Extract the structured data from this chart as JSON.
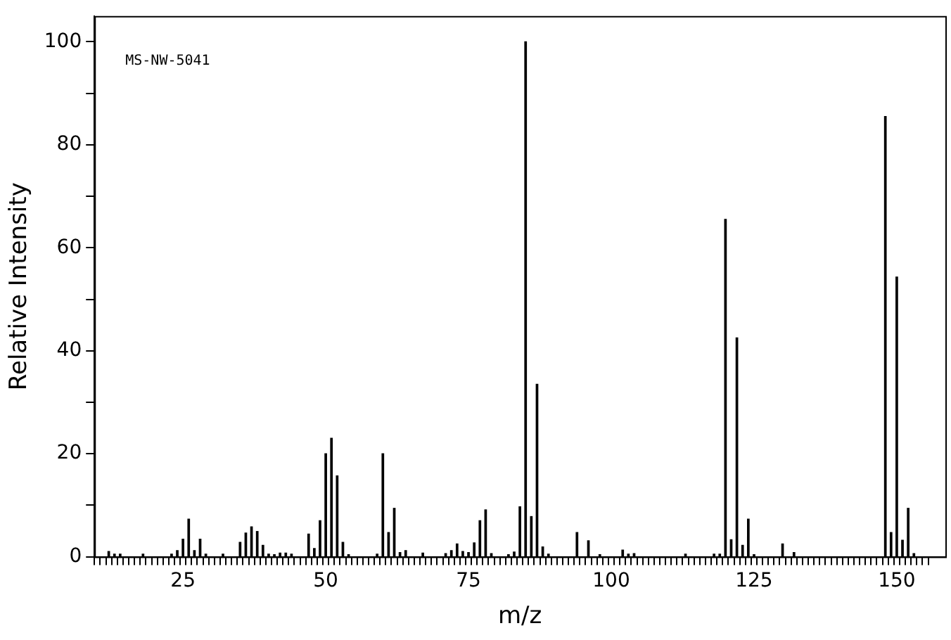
{
  "chart_data": {
    "type": "bar",
    "xlabel": "m/z",
    "ylabel": "Relative Intensity",
    "annotations": [
      "MS-NW-5041"
    ],
    "x": [
      12,
      13,
      14,
      18,
      23,
      24,
      25,
      26,
      27,
      28,
      29,
      32,
      35,
      36,
      37,
      38,
      39,
      40,
      41,
      42,
      43,
      44,
      47,
      48,
      49,
      50,
      51,
      52,
      53,
      54,
      59,
      60,
      61,
      62,
      63,
      64,
      67,
      71,
      72,
      73,
      74,
      75,
      76,
      77,
      78,
      79,
      82,
      83,
      84,
      85,
      86,
      87,
      88,
      89,
      94,
      96,
      98,
      102,
      103,
      104,
      113,
      118,
      119,
      120,
      121,
      122,
      123,
      124,
      125,
      130,
      132,
      148,
      149,
      150,
      151,
      152,
      153
    ],
    "values": [
      1,
      0.5,
      0.5,
      0.5,
      0.5,
      1.2,
      3.4,
      7.3,
      1.2,
      3.4,
      0.5,
      0.5,
      2.8,
      4.6,
      5.8,
      4.9,
      2.2,
      0.5,
      0.4,
      0.7,
      0.7,
      0.5,
      4.4,
      1.6,
      7,
      20,
      23,
      15.7,
      2.8,
      0.4,
      0.5,
      20,
      4.7,
      9.4,
      0.8,
      1.2,
      0.7,
      0.6,
      1.2,
      2.5,
      1,
      0.8,
      2.7,
      7,
      9.1,
      0.6,
      0.4,
      0.9,
      9.7,
      100,
      7.8,
      33.5,
      1.9,
      0.5,
      4.7,
      3.1,
      0.4,
      1.3,
      0.5,
      0.6,
      0.5,
      0.5,
      0.5,
      65.5,
      3.3,
      42.5,
      2.2,
      7.3,
      0.4,
      2.5,
      0.8,
      85.5,
      4.7,
      54.3,
      3.2,
      9.4,
      0.6
    ],
    "color": "#000000",
    "xlim": [
      10,
      158
    ],
    "xticks": [
      {
        "value": 10,
        "label": null
      },
      {
        "value": 11,
        "label": null
      },
      {
        "value": 12,
        "label": null
      },
      {
        "value": 13,
        "label": null
      },
      {
        "value": 14,
        "label": null
      },
      {
        "value": 15,
        "label": null
      },
      {
        "value": 16,
        "label": null
      },
      {
        "value": 17,
        "label": null
      },
      {
        "value": 18,
        "label": null
      },
      {
        "value": 19,
        "label": null
      },
      {
        "value": 20,
        "label": null
      },
      {
        "value": 21,
        "label": null
      },
      {
        "value": 22,
        "label": null
      },
      {
        "value": 23,
        "label": null
      },
      {
        "value": 24,
        "label": null
      },
      25,
      {
        "value": 26,
        "label": null
      },
      {
        "value": 27,
        "label": null
      },
      {
        "value": 28,
        "label": null
      },
      {
        "value": 29,
        "label": null
      },
      {
        "value": 30,
        "label": null
      },
      {
        "value": 31,
        "label": null
      },
      {
        "value": 32,
        "label": null
      },
      {
        "value": 33,
        "label": null
      },
      {
        "value": 34,
        "label": null
      },
      {
        "value": 35,
        "label": null
      },
      {
        "value": 36,
        "label": null
      },
      {
        "value": 37,
        "label": null
      },
      {
        "value": 38,
        "label": null
      },
      {
        "value": 39,
        "label": null
      },
      {
        "value": 40,
        "label": null
      },
      {
        "value": 41,
        "label": null
      },
      {
        "value": 42,
        "label": null
      },
      {
        "value": 43,
        "label": null
      },
      {
        "value": 44,
        "label": null
      },
      {
        "value": 45,
        "label": null
      },
      {
        "value": 46,
        "label": null
      },
      {
        "value": 47,
        "label": null
      },
      {
        "value": 48,
        "label": null
      },
      {
        "value": 49,
        "label": null
      },
      50,
      {
        "value": 51,
        "label": null
      },
      {
        "value": 52,
        "label": null
      },
      {
        "value": 53,
        "label": null
      },
      {
        "value": 54,
        "label": null
      },
      {
        "value": 55,
        "label": null
      },
      {
        "value": 56,
        "label": null
      },
      {
        "value": 57,
        "label": null
      },
      {
        "value": 58,
        "label": null
      },
      {
        "value": 59,
        "label": null
      },
      {
        "value": 60,
        "label": null
      },
      {
        "value": 61,
        "label": null
      },
      {
        "value": 62,
        "label": null
      },
      {
        "value": 63,
        "label": null
      },
      {
        "value": 64,
        "label": null
      },
      {
        "value": 65,
        "label": null
      },
      {
        "value": 66,
        "label": null
      },
      {
        "value": 67,
        "label": null
      },
      {
        "value": 68,
        "label": null
      },
      {
        "value": 69,
        "label": null
      },
      {
        "value": 70,
        "label": null
      },
      {
        "value": 71,
        "label": null
      },
      {
        "value": 72,
        "label": null
      },
      {
        "value": 73,
        "label": null
      },
      {
        "value": 74,
        "label": null
      },
      75,
      {
        "value": 76,
        "label": null
      },
      {
        "value": 77,
        "label": null
      },
      {
        "value": 78,
        "label": null
      },
      {
        "value": 79,
        "label": null
      },
      {
        "value": 80,
        "label": null
      },
      {
        "value": 81,
        "label": null
      },
      {
        "value": 82,
        "label": null
      },
      {
        "value": 83,
        "label": null
      },
      {
        "value": 84,
        "label": null
      },
      {
        "value": 85,
        "label": null
      },
      {
        "value": 86,
        "label": null
      },
      {
        "value": 87,
        "label": null
      },
      {
        "value": 88,
        "label": null
      },
      {
        "value": 89,
        "label": null
      },
      {
        "value": 90,
        "label": null
      },
      {
        "value": 91,
        "label": null
      },
      {
        "value": 92,
        "label": null
      },
      {
        "value": 93,
        "label": null
      },
      {
        "value": 94,
        "label": null
      },
      {
        "value": 95,
        "label": null
      },
      {
        "value": 96,
        "label": null
      },
      {
        "value": 97,
        "label": null
      },
      {
        "value": 98,
        "label": null
      },
      {
        "value": 99,
        "label": null
      },
      100,
      {
        "value": 101,
        "label": null
      },
      {
        "value": 102,
        "label": null
      },
      {
        "value": 103,
        "label": null
      },
      {
        "value": 104,
        "label": null
      },
      {
        "value": 105,
        "label": null
      },
      {
        "value": 106,
        "label": null
      },
      {
        "value": 107,
        "label": null
      },
      {
        "value": 108,
        "label": null
      },
      {
        "value": 109,
        "label": null
      },
      {
        "value": 110,
        "label": null
      },
      {
        "value": 111,
        "label": null
      },
      {
        "value": 112,
        "label": null
      },
      {
        "value": 113,
        "label": null
      },
      {
        "value": 114,
        "label": null
      },
      {
        "value": 115,
        "label": null
      },
      {
        "value": 116,
        "label": null
      },
      {
        "value": 117,
        "label": null
      },
      {
        "value": 118,
        "label": null
      },
      {
        "value": 119,
        "label": null
      },
      {
        "value": 120,
        "label": null
      },
      {
        "value": 121,
        "label": null
      },
      {
        "value": 122,
        "label": null
      },
      {
        "value": 123,
        "label": null
      },
      {
        "value": 124,
        "label": null
      },
      125,
      {
        "value": 126,
        "label": null
      },
      {
        "value": 127,
        "label": null
      },
      {
        "value": 128,
        "label": null
      },
      {
        "value": 129,
        "label": null
      },
      {
        "value": 130,
        "label": null
      },
      {
        "value": 131,
        "label": null
      },
      {
        "value": 132,
        "label": null
      },
      {
        "value": 133,
        "label": null
      },
      {
        "value": 134,
        "label": null
      },
      {
        "value": 135,
        "label": null
      },
      {
        "value": 136,
        "label": null
      },
      {
        "value": 137,
        "label": null
      },
      {
        "value": 138,
        "label": null
      },
      {
        "value": 139,
        "label": null
      },
      {
        "value": 140,
        "label": null
      },
      {
        "value": 141,
        "label": null
      },
      {
        "value": 142,
        "label": null
      },
      {
        "value": 143,
        "label": null
      },
      {
        "value": 144,
        "label": null
      },
      {
        "value": 145,
        "label": null
      },
      {
        "value": 146,
        "label": null
      },
      {
        "value": 147,
        "label": null
      },
      {
        "value": 148,
        "label": null
      },
      {
        "value": 149,
        "label": null
      },
      150,
      {
        "value": 151,
        "label": null
      },
      {
        "value": 152,
        "label": null
      },
      {
        "value": 153,
        "label": null
      },
      {
        "value": 154,
        "label": null
      },
      {
        "value": 155,
        "label": null
      }
    ],
    "ylim": [
      0,
      105
    ],
    "yticks": [
      0,
      {
        "value": 10,
        "label": null
      },
      20,
      {
        "value": 30,
        "label": null
      },
      40,
      {
        "value": 50,
        "label": null
      },
      60,
      {
        "value": 70,
        "label": null
      },
      80,
      {
        "value": 90,
        "label": null
      },
      100
    ],
    "grid": false,
    "legend": false
  }
}
